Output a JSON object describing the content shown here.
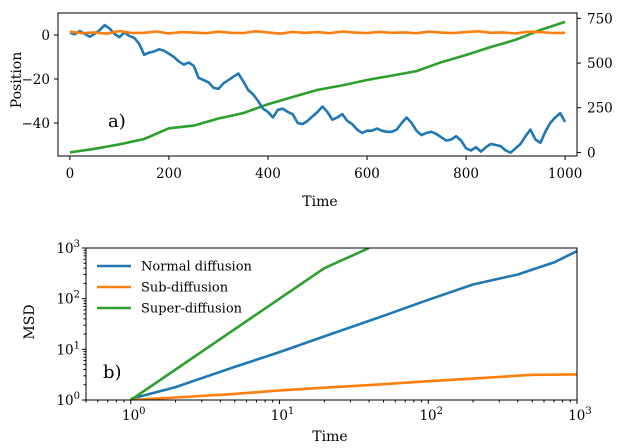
{
  "colors": {
    "blue": "#1f77b4",
    "orange": "#ff7f0e",
    "green": "#2ca02c",
    "axis": "#000000",
    "background": "#ffffff"
  },
  "chart_data": [
    {
      "type": "line",
      "panel_label": "a)",
      "xlabel": "Time",
      "ylabel": "Position",
      "xlim": [
        -24,
        1024
      ],
      "ylim": [
        -55,
        10
      ],
      "y2lim": [
        -20,
        780
      ],
      "xticks": [
        "0",
        "200",
        "400",
        "600",
        "800",
        "1000"
      ],
      "xtick_values": [
        0,
        200,
        400,
        600,
        800,
        1000
      ],
      "yticks": [
        "0",
        "−20",
        "−40"
      ],
      "ytick_values": [
        0,
        -20,
        -40
      ],
      "y2ticks": [
        "0",
        "250",
        "500",
        "750"
      ],
      "y2tick_values": [
        0,
        250,
        500,
        750
      ],
      "grid": false,
      "series": [
        {
          "color": "#1f77b4",
          "axis": "left",
          "x": [
            0,
            10,
            20,
            30,
            40,
            50,
            60,
            70,
            80,
            90,
            100,
            110,
            120,
            130,
            140,
            150,
            160,
            170,
            180,
            190,
            200,
            210,
            220,
            230,
            240,
            250,
            260,
            270,
            280,
            290,
            300,
            310,
            320,
            330,
            340,
            350,
            360,
            370,
            380,
            390,
            400,
            410,
            420,
            430,
            440,
            450,
            460,
            470,
            480,
            490,
            500,
            510,
            520,
            530,
            540,
            550,
            560,
            570,
            580,
            590,
            600,
            610,
            620,
            630,
            640,
            650,
            660,
            670,
            680,
            690,
            700,
            710,
            720,
            730,
            740,
            750,
            760,
            770,
            780,
            790,
            800,
            810,
            820,
            830,
            840,
            850,
            860,
            870,
            880,
            890,
            900,
            910,
            920,
            930,
            940,
            950,
            960,
            970,
            980,
            990,
            1000
          ],
          "y": [
            1.0,
            0.3,
            1.8,
            0.5,
            -0.8,
            0.6,
            2.2,
            4.5,
            3.0,
            0.5,
            -1.0,
            1.2,
            -0.4,
            -1.3,
            -4.0,
            -9.0,
            -8.0,
            -7.5,
            -6.5,
            -7.2,
            -8.5,
            -10.0,
            -12.0,
            -13.5,
            -12.5,
            -14.0,
            -19.5,
            -20.5,
            -21.5,
            -24.0,
            -24.5,
            -22.0,
            -20.5,
            -19.0,
            -17.5,
            -21.0,
            -25.0,
            -27.0,
            -30.0,
            -33.5,
            -35.0,
            -37.5,
            -34.0,
            -33.5,
            -35.0,
            -36.0,
            -40.0,
            -40.5,
            -39.0,
            -37.0,
            -35.0,
            -32.5,
            -35.0,
            -38.5,
            -37.5,
            -36.0,
            -39.0,
            -40.5,
            -43.0,
            -44.5,
            -43.5,
            -43.5,
            -42.5,
            -43.5,
            -44.0,
            -44.0,
            -43.0,
            -40.0,
            -37.5,
            -40.0,
            -43.5,
            -45.5,
            -44.5,
            -44.0,
            -45.0,
            -46.5,
            -48.0,
            -47.5,
            -46.0,
            -48.0,
            -51.5,
            -52.5,
            -51.0,
            -53.0,
            -51.0,
            -49.5,
            -50.0,
            -50.5,
            -52.5,
            -53.5,
            -51.5,
            -49.5,
            -46.0,
            -43.0,
            -47.5,
            -49.0,
            -44.0,
            -40.0,
            -37.5,
            -35.5,
            -39.5
          ]
        },
        {
          "color": "#ff7f0e",
          "axis": "left",
          "x": [
            0,
            25,
            50,
            75,
            100,
            125,
            150,
            175,
            200,
            225,
            250,
            275,
            300,
            325,
            350,
            375,
            400,
            425,
            450,
            475,
            500,
            525,
            550,
            575,
            600,
            625,
            650,
            675,
            700,
            725,
            750,
            775,
            800,
            825,
            850,
            875,
            900,
            925,
            950,
            975,
            1000
          ],
          "y": [
            1.5,
            0.8,
            1.2,
            0.6,
            1.8,
            0.9,
            1.0,
            1.6,
            0.7,
            1.3,
            1.1,
            0.8,
            1.5,
            1.0,
            0.9,
            1.7,
            1.2,
            0.6,
            1.4,
            1.0,
            1.3,
            0.8,
            1.6,
            1.1,
            0.9,
            1.4,
            1.0,
            1.2,
            0.8,
            1.5,
            1.1,
            0.9,
            1.3,
            1.7,
            1.0,
            1.2,
            0.7,
            1.5,
            1.3,
            0.9,
            1.0
          ]
        },
        {
          "color": "#2ca02c",
          "axis": "right",
          "x": [
            0,
            50,
            100,
            150,
            200,
            250,
            300,
            350,
            400,
            450,
            500,
            550,
            600,
            650,
            700,
            750,
            800,
            850,
            900,
            950,
            1000
          ],
          "y": [
            0,
            20,
            45,
            75,
            135,
            150,
            190,
            220,
            270,
            310,
            350,
            375,
            405,
            430,
            455,
            505,
            545,
            590,
            630,
            685,
            730
          ]
        }
      ]
    },
    {
      "type": "line",
      "panel_label": "b)",
      "xlabel": "Time",
      "ylabel": "MSD",
      "xscale": "log",
      "yscale": "log",
      "xlim": [
        0.5,
        1000
      ],
      "ylim": [
        1,
        1000
      ],
      "xticks": [
        "10",
        "10",
        "10",
        "10"
      ],
      "xtick_exponents": [
        "0",
        "1",
        "2",
        "3"
      ],
      "xtick_values": [
        1,
        10,
        100,
        1000
      ],
      "yticks": [
        "10",
        "10",
        "10",
        "10"
      ],
      "ytick_exponents": [
        "0",
        "1",
        "2",
        "3"
      ],
      "ytick_values": [
        1,
        10,
        100,
        1000
      ],
      "grid": false,
      "legend_position": "top-left",
      "series": [
        {
          "name": "Normal diffusion",
          "color": "#1f77b4",
          "x": [
            1,
            2,
            5,
            10,
            20,
            50,
            100,
            200,
            400,
            700,
            1000
          ],
          "y": [
            1.05,
            1.8,
            4.5,
            8.8,
            18,
            46,
            95,
            190,
            300,
            520,
            870
          ]
        },
        {
          "name": "Sub-diffusion",
          "color": "#ff7f0e",
          "x": [
            1,
            2,
            5,
            10,
            20,
            50,
            100,
            200,
            500,
            1000
          ],
          "y": [
            1.0,
            1.12,
            1.32,
            1.55,
            1.75,
            2.05,
            2.35,
            2.65,
            3.15,
            3.2
          ]
        },
        {
          "name": "Super-diffusion",
          "color": "#2ca02c",
          "x": [
            1,
            2,
            5,
            10,
            20,
            40
          ],
          "y": [
            1.0,
            4.0,
            25.0,
            100.0,
            400.0,
            1000.0
          ]
        }
      ]
    }
  ]
}
